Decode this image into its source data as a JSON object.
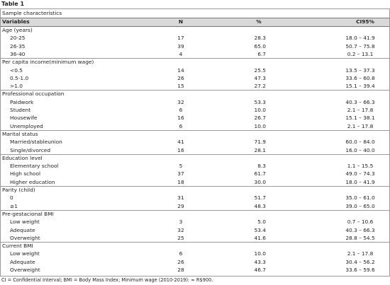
{
  "title": "Table 1",
  "caption": "Sample characteristics",
  "header": [
    "Variables",
    "N",
    "%",
    "CI95%"
  ],
  "sections": [
    {
      "title": "Age (years)",
      "rows": [
        [
          "20-25",
          "17",
          "28.3",
          "18.0 – 41.9"
        ],
        [
          "26-35",
          "39",
          "65.0",
          "50.7 – 75.8"
        ],
        [
          "36-40",
          "4",
          "6.7",
          "0.2 – 13.1"
        ]
      ]
    },
    {
      "title": "Per capita income(minimum wage)",
      "rows": [
        [
          "<0.5",
          "14",
          "25.5",
          "13.5 – 37.3"
        ],
        [
          "0.5-1.0",
          "26",
          "47.3",
          "33.6 – 60.8"
        ],
        [
          ">1.0",
          "15",
          "27.2",
          "15.1 – 39.4"
        ]
      ]
    },
    {
      "title": "Professional occupation",
      "rows": [
        [
          "Paidwork",
          "32",
          "53.3",
          "40.3 – 66.3"
        ],
        [
          "Student",
          "6",
          "10.0",
          "2.1 – 17.8"
        ],
        [
          "Housewife",
          "16",
          "26.7",
          "15.1 – 38.1"
        ],
        [
          "Unemployed",
          "6",
          "10.0",
          "2.1 – 17.8"
        ]
      ]
    },
    {
      "title": "Marital status",
      "rows": [
        [
          "Married/stableunion",
          "41",
          "71.9",
          "60.0 – 84.0"
        ],
        [
          "Single/divorced",
          "16",
          "28.1",
          "16.0 – 40.0"
        ]
      ]
    },
    {
      "title": "Education level",
      "rows": [
        [
          "Elementary school",
          "5",
          "8.3",
          "1.1 – 15.5"
        ],
        [
          "High school",
          "37",
          "61.7",
          "49.0 – 74.3"
        ],
        [
          "Higher education",
          "18",
          "30.0",
          "18.0 – 41.9"
        ]
      ]
    },
    {
      "title": "Parity (child)",
      "rows": [
        [
          "0",
          "31",
          "51.7",
          "35.0 – 61.0"
        ],
        [
          "≥1",
          "29",
          "48.3",
          "39.0 – 65.0"
        ]
      ]
    },
    {
      "title": "Pre-gestacional BMI",
      "rows": [
        [
          "Low weight",
          "3",
          "5.0",
          "0.7 – 10.6"
        ],
        [
          "Adequate",
          "32",
          "53.4",
          "40.3 – 66.3"
        ],
        [
          "Overweight",
          "25",
          "41.6",
          "28.8 – 54.5"
        ]
      ]
    },
    {
      "title": "Current BMI",
      "rows": [
        [
          "Low weight",
          "6",
          "10.0",
          "2.1 – 17.8"
        ],
        [
          "Adequate",
          "26",
          "43.3",
          "30.4 – 56.2"
        ],
        [
          "Overweight",
          "28",
          "46.7",
          "33.6 – 59.6"
        ]
      ]
    }
  ],
  "footnote": "CI = Confidential Interval; BMI = Body Mass Index; Minimum wage (2010-2019): ≈ R$900."
}
